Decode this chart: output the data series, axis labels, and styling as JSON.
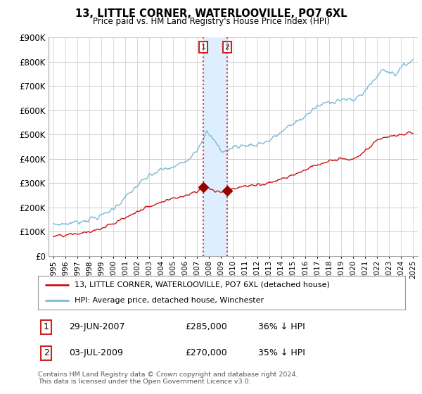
{
  "title": "13, LITTLE CORNER, WATERLOOVILLE, PO7 6XL",
  "subtitle": "Price paid vs. HM Land Registry's House Price Index (HPI)",
  "legend_line1": "13, LITTLE CORNER, WATERLOOVILLE, PO7 6XL (detached house)",
  "legend_line2": "HPI: Average price, detached house, Winchester",
  "footnote": "Contains HM Land Registry data © Crown copyright and database right 2024.\nThis data is licensed under the Open Government Licence v3.0.",
  "transaction1_date": "29-JUN-2007",
  "transaction1_price": "£285,000",
  "transaction1_hpi": "36% ↓ HPI",
  "transaction2_date": "03-JUL-2009",
  "transaction2_price": "£270,000",
  "transaction2_hpi": "35% ↓ HPI",
  "hpi_color": "#7ab8d8",
  "price_paid_color": "#cc1111",
  "vline_color": "#dd3333",
  "shade_color": "#ddeeff",
  "marker_color": "#990000",
  "ylim_min": 0,
  "ylim_max": 900000,
  "yticks": [
    0,
    100000,
    200000,
    300000,
    400000,
    500000,
    600000,
    700000,
    800000,
    900000
  ],
  "ytick_labels": [
    "£0",
    "£100K",
    "£200K",
    "£300K",
    "£400K",
    "£500K",
    "£600K",
    "£700K",
    "£800K",
    "£900K"
  ],
  "background_color": "#ffffff",
  "grid_color": "#cccccc",
  "t1_year": 2007.5,
  "t2_year": 2009.5,
  "t1_price": 285000,
  "t2_price": 270000
}
